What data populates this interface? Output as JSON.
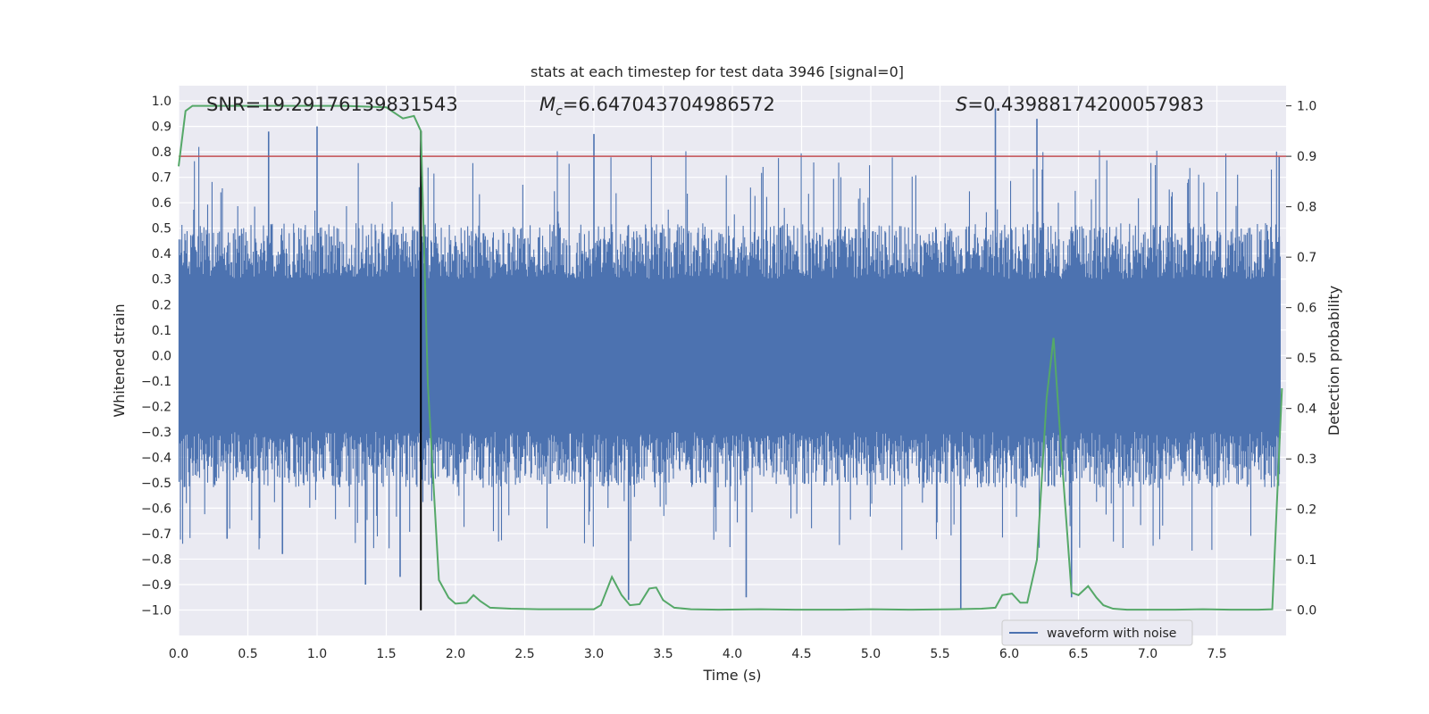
{
  "chart_data": {
    "type": "line",
    "title": "stats at each timestep for test data 3946 [signal=0]",
    "xlabel": "Time (s)",
    "ylabel_left": "Whitened strain",
    "ylabel_right": "Detection probability",
    "xlim": [
      0.0,
      8.0
    ],
    "ylim_left": [
      -1.1,
      1.06
    ],
    "ylim_right": [
      -0.05,
      1.04
    ],
    "xticks": [
      "0.0",
      "0.5",
      "1.0",
      "1.5",
      "2.0",
      "2.5",
      "3.0",
      "3.5",
      "4.0",
      "4.5",
      "5.0",
      "5.5",
      "6.0",
      "6.5",
      "7.0",
      "7.5"
    ],
    "yticks_left": [
      "1.0",
      "0.9",
      "0.8",
      "0.7",
      "0.6",
      "0.5",
      "0.4",
      "0.3",
      "0.2",
      "0.1",
      "0.0",
      "-0.1",
      "-0.2",
      "-0.3",
      "-0.4",
      "-0.5",
      "-0.6",
      "-0.7",
      "-0.8",
      "-0.9",
      "-1.0"
    ],
    "yticks_right": [
      "1.0",
      "0.9",
      "0.8",
      "0.7",
      "0.6",
      "0.5",
      "0.4",
      "0.3",
      "0.2",
      "0.1",
      "0.0"
    ],
    "grid": true,
    "legend_position": "bottom-right",
    "annotations": {
      "snr": "SNR=19.29176139831543",
      "mc_symbol": "M",
      "mc_sub": "c",
      "mc_value": "=6.647043704986572",
      "s_symbol": "S",
      "s_value": "=0.43988174200057983"
    },
    "threshold_probability": 0.9,
    "marker_time": 1.75,
    "series": [
      {
        "name": "waveform with noise",
        "axis": "left",
        "color": "#4c72b0",
        "spikes": [
          {
            "x": 0.65,
            "y": 0.88
          },
          {
            "x": 1.0,
            "y": 0.9
          },
          {
            "x": 3.0,
            "y": 0.87
          },
          {
            "x": 5.9,
            "y": 0.97
          },
          {
            "x": 6.2,
            "y": 0.93
          },
          {
            "x": 7.95,
            "y": 0.78
          },
          {
            "x": 1.35,
            "y": -0.9
          },
          {
            "x": 1.6,
            "y": -0.87
          },
          {
            "x": 3.25,
            "y": -0.96
          },
          {
            "x": 5.65,
            "y": -1.0
          },
          {
            "x": 6.45,
            "y": -0.95
          },
          {
            "x": 4.1,
            "y": -0.95
          },
          {
            "x": 0.35,
            "y": -0.72
          },
          {
            "x": 0.75,
            "y": -0.78
          }
        ]
      },
      {
        "axis": "right",
        "color": "#55a868",
        "x": [
          0.0,
          0.05,
          0.1,
          0.2,
          0.4,
          0.6,
          0.8,
          1.0,
          1.2,
          1.5,
          1.62,
          1.7,
          1.75,
          1.8,
          1.88,
          1.95,
          2.0,
          2.08,
          2.13,
          2.18,
          2.25,
          2.4,
          2.6,
          2.8,
          3.0,
          3.05,
          3.13,
          3.2,
          3.26,
          3.33,
          3.4,
          3.45,
          3.5,
          3.58,
          3.7,
          3.9,
          4.2,
          4.5,
          4.8,
          5.0,
          5.3,
          5.6,
          5.8,
          5.9,
          5.95,
          6.02,
          6.08,
          6.13,
          6.2,
          6.27,
          6.32,
          6.38,
          6.45,
          6.5,
          6.57,
          6.63,
          6.68,
          6.75,
          6.85,
          7.0,
          7.2,
          7.4,
          7.6,
          7.8,
          7.9,
          7.97
        ],
        "y": [
          0.88,
          0.99,
          1.0,
          1.0,
          1.0,
          1.0,
          1.0,
          1.0,
          1.0,
          0.997,
          0.975,
          0.98,
          0.95,
          0.45,
          0.06,
          0.025,
          0.013,
          0.015,
          0.03,
          0.018,
          0.005,
          0.003,
          0.002,
          0.002,
          0.002,
          0.01,
          0.066,
          0.03,
          0.01,
          0.012,
          0.043,
          0.045,
          0.02,
          0.005,
          0.002,
          0.001,
          0.002,
          0.001,
          0.001,
          0.002,
          0.001,
          0.002,
          0.003,
          0.005,
          0.03,
          0.033,
          0.015,
          0.015,
          0.1,
          0.42,
          0.54,
          0.3,
          0.035,
          0.03,
          0.048,
          0.025,
          0.01,
          0.003,
          0.001,
          0.001,
          0.001,
          0.002,
          0.001,
          0.001,
          0.002,
          0.44
        ]
      }
    ]
  }
}
